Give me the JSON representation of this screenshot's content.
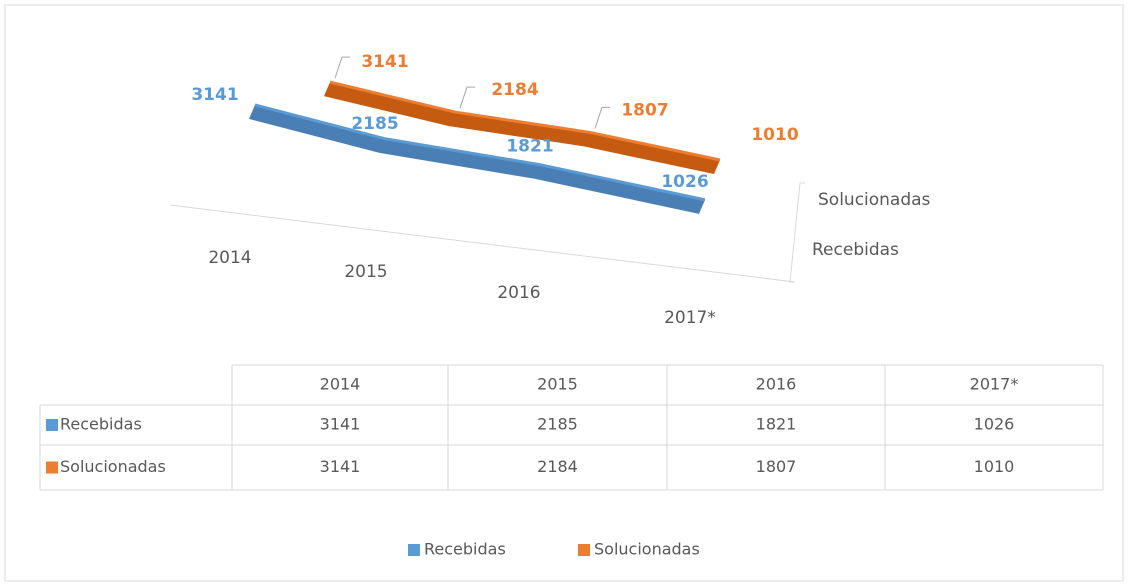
{
  "chart_data": {
    "type": "line3d",
    "categories": [
      "2014",
      "2015",
      "2016",
      "2017*"
    ],
    "series": [
      {
        "name": "Recebidas",
        "color": "#5b9bd5",
        "values": [
          3141,
          2185,
          1821,
          1026
        ]
      },
      {
        "name": "Solucionadas",
        "color": "#ed7d31",
        "values": [
          3141,
          2184,
          1807,
          1010
        ]
      }
    ],
    "legend": "bottom",
    "data_table": true
  }
}
